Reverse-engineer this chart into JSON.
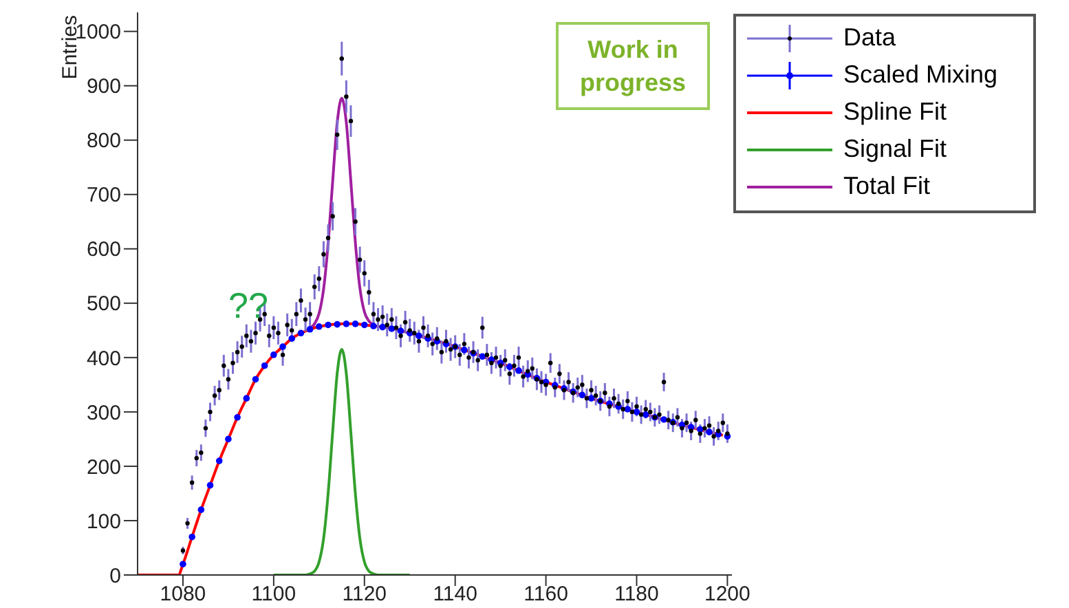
{
  "chart_data": {
    "type": "scatter",
    "ylabel": "Entries",
    "xlim": [
      1070,
      1201
    ],
    "ylim": [
      0,
      1035
    ],
    "xticks": [
      1080,
      1100,
      1120,
      1140,
      1160,
      1180,
      1200
    ],
    "yticks": [
      0,
      100,
      200,
      300,
      400,
      500,
      600,
      700,
      800,
      900,
      1000
    ],
    "legend": "top right",
    "annotations": [
      "Work in progress",
      "??"
    ],
    "series": [
      {
        "name": "Data",
        "marker": "circle",
        "color": "#000000",
        "x": [
          1080,
          1081,
          1082,
          1083,
          1084,
          1085,
          1086,
          1087,
          1088,
          1089,
          1090,
          1091,
          1092,
          1093,
          1094,
          1095,
          1096,
          1097,
          1098,
          1099,
          1100,
          1101,
          1102,
          1103,
          1104,
          1105,
          1106,
          1107,
          1108,
          1109,
          1110,
          1111,
          1112,
          1113,
          1114,
          1115,
          1116,
          1117,
          1118,
          1119,
          1120,
          1121,
          1122,
          1123,
          1124,
          1125,
          1126,
          1127,
          1128,
          1129,
          1130,
          1131,
          1132,
          1133,
          1134,
          1135,
          1136,
          1137,
          1138,
          1139,
          1140,
          1141,
          1142,
          1143,
          1144,
          1145,
          1146,
          1147,
          1148,
          1149,
          1150,
          1151,
          1152,
          1153,
          1154,
          1155,
          1156,
          1157,
          1158,
          1159,
          1160,
          1161,
          1162,
          1163,
          1164,
          1165,
          1166,
          1167,
          1168,
          1169,
          1170,
          1171,
          1172,
          1173,
          1174,
          1175,
          1176,
          1177,
          1178,
          1179,
          1180,
          1181,
          1182,
          1183,
          1184,
          1185,
          1186,
          1187,
          1188,
          1189,
          1190,
          1191,
          1192,
          1193,
          1194,
          1195,
          1196,
          1197,
          1198,
          1199,
          1200
        ],
        "values": [
          45,
          95,
          170,
          215,
          225,
          270,
          300,
          330,
          340,
          385,
          360,
          390,
          410,
          420,
          440,
          430,
          445,
          470,
          480,
          440,
          455,
          445,
          405,
          460,
          450,
          480,
          505,
          470,
          480,
          530,
          545,
          590,
          620,
          660,
          810,
          950,
          880,
          835,
          650,
          580,
          555,
          520,
          480,
          470,
          475,
          460,
          470,
          455,
          440,
          465,
          450,
          445,
          430,
          455,
          440,
          425,
          435,
          410,
          430,
          415,
          420,
          405,
          425,
          400,
          410,
          395,
          455,
          405,
          390,
          400,
          385,
          395,
          370,
          385,
          400,
          365,
          375,
          380,
          360,
          355,
          350,
          390,
          345,
          370,
          340,
          355,
          335,
          345,
          350,
          325,
          340,
          330,
          320,
          335,
          310,
          325,
          315,
          305,
          320,
          300,
          310,
          295,
          305,
          300,
          290,
          295,
          355,
          285,
          280,
          290,
          270,
          280,
          265,
          285,
          260,
          270,
          275,
          255,
          265,
          280,
          260
        ],
        "errors": [
          7,
          10,
          13,
          15,
          15,
          16,
          17,
          18,
          18,
          20,
          19,
          20,
          20,
          20,
          21,
          21,
          21,
          22,
          22,
          21,
          21,
          21,
          20,
          21,
          21,
          22,
          22,
          22,
          22,
          23,
          23,
          24,
          25,
          26,
          28,
          31,
          30,
          29,
          25,
          24,
          24,
          23,
          22,
          21,
          21,
          21,
          21,
          21,
          21,
          21,
          21,
          21,
          21,
          21,
          21,
          21,
          21,
          21,
          21,
          21,
          21,
          20,
          20,
          20,
          20,
          20,
          20,
          20,
          20,
          20,
          20,
          20,
          20,
          20,
          20,
          20,
          20,
          20,
          20,
          20,
          20,
          18,
          18,
          18,
          18,
          18,
          18,
          18,
          18,
          18,
          18,
          18,
          18,
          18,
          18,
          18,
          18,
          18,
          18,
          18,
          18,
          17,
          17,
          17,
          17,
          17,
          17,
          17,
          17,
          17,
          17,
          17,
          17,
          17,
          17,
          17,
          17,
          17,
          17,
          17,
          17
        ]
      },
      {
        "name": "Scaled Mixing",
        "marker": "circle",
        "color": "#0000ff",
        "x": [
          1080,
          1082,
          1084,
          1086,
          1088,
          1090,
          1092,
          1094,
          1096,
          1098,
          1100,
          1102,
          1104,
          1106,
          1108,
          1110,
          1112,
          1114,
          1116,
          1118,
          1120,
          1122,
          1124,
          1126,
          1128,
          1130,
          1132,
          1134,
          1136,
          1138,
          1140,
          1142,
          1144,
          1146,
          1148,
          1150,
          1152,
          1154,
          1156,
          1158,
          1160,
          1162,
          1164,
          1166,
          1168,
          1170,
          1172,
          1174,
          1176,
          1178,
          1180,
          1182,
          1184,
          1186,
          1188,
          1190,
          1192,
          1194,
          1196,
          1198,
          1200
        ],
        "values": [
          20,
          70,
          120,
          165,
          210,
          250,
          290,
          325,
          360,
          385,
          405,
          420,
          435,
          445,
          452,
          457,
          460,
          461,
          462,
          462,
          460,
          458,
          456,
          453,
          449,
          445,
          440,
          435,
          430,
          425,
          420,
          414,
          408,
          402,
          396,
          390,
          383,
          376,
          369,
          362,
          355,
          349,
          343,
          337,
          331,
          325,
          320,
          315,
          310,
          305,
          300,
          295,
          290,
          286,
          281,
          276,
          272,
          268,
          263,
          259,
          255
        ]
      },
      {
        "name": "Spline Fit",
        "type": "line",
        "marker": "none",
        "color": "#ff0000",
        "x": [
          1070,
          1079,
          1080,
          1082,
          1084,
          1086,
          1088,
          1090,
          1092,
          1094,
          1096,
          1098,
          1100,
          1102,
          1104,
          1106,
          1108,
          1110,
          1112,
          1115,
          1118,
          1120,
          1125,
          1130,
          1135,
          1140,
          1145,
          1150,
          1155,
          1160,
          1165,
          1170,
          1175,
          1180,
          1185,
          1190,
          1195,
          1199
        ],
        "values": [
          0,
          0,
          20,
          70,
          120,
          165,
          210,
          250,
          290,
          325,
          360,
          385,
          405,
          420,
          435,
          445,
          452,
          457,
          460,
          462,
          462,
          460,
          455,
          445,
          433,
          420,
          405,
          390,
          372,
          355,
          340,
          325,
          312,
          300,
          288,
          276,
          265,
          257
        ]
      },
      {
        "name": "Signal Fit",
        "type": "line",
        "marker": "none",
        "color": "#33a02c",
        "x": [
          1100,
          1107,
          1108,
          1109,
          1110,
          1111,
          1112,
          1113,
          1114,
          1115,
          1116,
          1117,
          1118,
          1119,
          1120,
          1121,
          1122,
          1123,
          1130
        ],
        "values": [
          0,
          0,
          2,
          7,
          24,
          67,
          150,
          263,
          371,
          415,
          371,
          263,
          150,
          67,
          24,
          7,
          2,
          0,
          0
        ]
      },
      {
        "name": "Total Fit",
        "type": "line",
        "marker": "none",
        "color": "#a020a0",
        "x": [
          1108,
          1109,
          1110,
          1111,
          1112,
          1113,
          1114,
          1115,
          1116,
          1117,
          1118,
          1119,
          1120,
          1121,
          1122
        ],
        "values": [
          454,
          462,
          481,
          526,
          610,
          724,
          832,
          877,
          833,
          725,
          612,
          528,
          484,
          467,
          460
        ]
      }
    ]
  }
}
